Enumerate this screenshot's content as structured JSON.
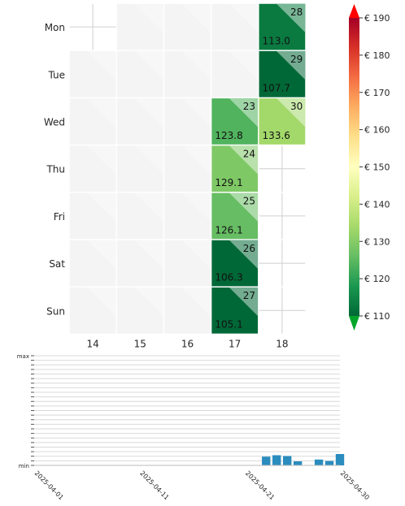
{
  "chart_data": [
    {
      "type": "heatmap",
      "rows": [
        "Mon",
        "Tue",
        "Wed",
        "Thu",
        "Fri",
        "Sat",
        "Sun"
      ],
      "columns": [
        "14",
        "15",
        "16",
        "17",
        "18"
      ],
      "cells": [
        {
          "row": "Mon",
          "col": "18",
          "day": "28",
          "value": "113.0",
          "v": 113.0
        },
        {
          "row": "Tue",
          "col": "18",
          "day": "29",
          "value": "107.7",
          "v": 107.7
        },
        {
          "row": "Wed",
          "col": "17",
          "day": "23",
          "value": "123.8",
          "v": 123.8
        },
        {
          "row": "Wed",
          "col": "18",
          "day": "30",
          "value": "133.6",
          "v": 133.6
        },
        {
          "row": "Thu",
          "col": "17",
          "day": "24",
          "value": "129.1",
          "v": 129.1
        },
        {
          "row": "Fri",
          "col": "17",
          "day": "25",
          "value": "126.1",
          "v": 126.1
        },
        {
          "row": "Sat",
          "col": "17",
          "day": "26",
          "value": "106.3",
          "v": 106.3
        },
        {
          "row": "Sun",
          "col": "17",
          "day": "27",
          "value": "105.1",
          "v": 105.1
        }
      ],
      "crosshair_cells": [
        {
          "row": "Mon",
          "col": "14"
        },
        {
          "row": "Thu",
          "col": "18"
        },
        {
          "row": "Fri",
          "col": "18"
        },
        {
          "row": "Sat",
          "col": "18"
        },
        {
          "row": "Sun",
          "col": "18"
        }
      ],
      "colorbar": {
        "ticks": [
          "€ 190",
          "€ 180",
          "€ 170",
          "€ 160",
          "€ 150",
          "€ 140",
          "€ 130",
          "€ 120",
          "€ 110"
        ],
        "range": [
          110,
          190
        ],
        "colormap": "RdYlGn_r",
        "extend": "both"
      }
    },
    {
      "type": "bar",
      "ytick_labels": [
        "max",
        "min"
      ],
      "xtick_labels": [
        "2025-04-01",
        "2025-04-11",
        "2025-04-21",
        "2025-04-30"
      ],
      "x_range": [
        "2025-04-01",
        "2025-04-30"
      ],
      "bars": [
        {
          "date": "2025-04-23",
          "value": 123.8
        },
        {
          "date": "2025-04-24",
          "value": 129.1
        },
        {
          "date": "2025-04-25",
          "value": 126.1
        },
        {
          "date": "2025-04-26",
          "value": 106.3
        },
        {
          "date": "2025-04-28",
          "value": 113.0
        },
        {
          "date": "2025-04-29",
          "value": 107.7
        },
        {
          "date": "2025-04-30",
          "value": 133.6
        }
      ],
      "bar_color": "#2b8cbe",
      "grid": true
    }
  ]
}
